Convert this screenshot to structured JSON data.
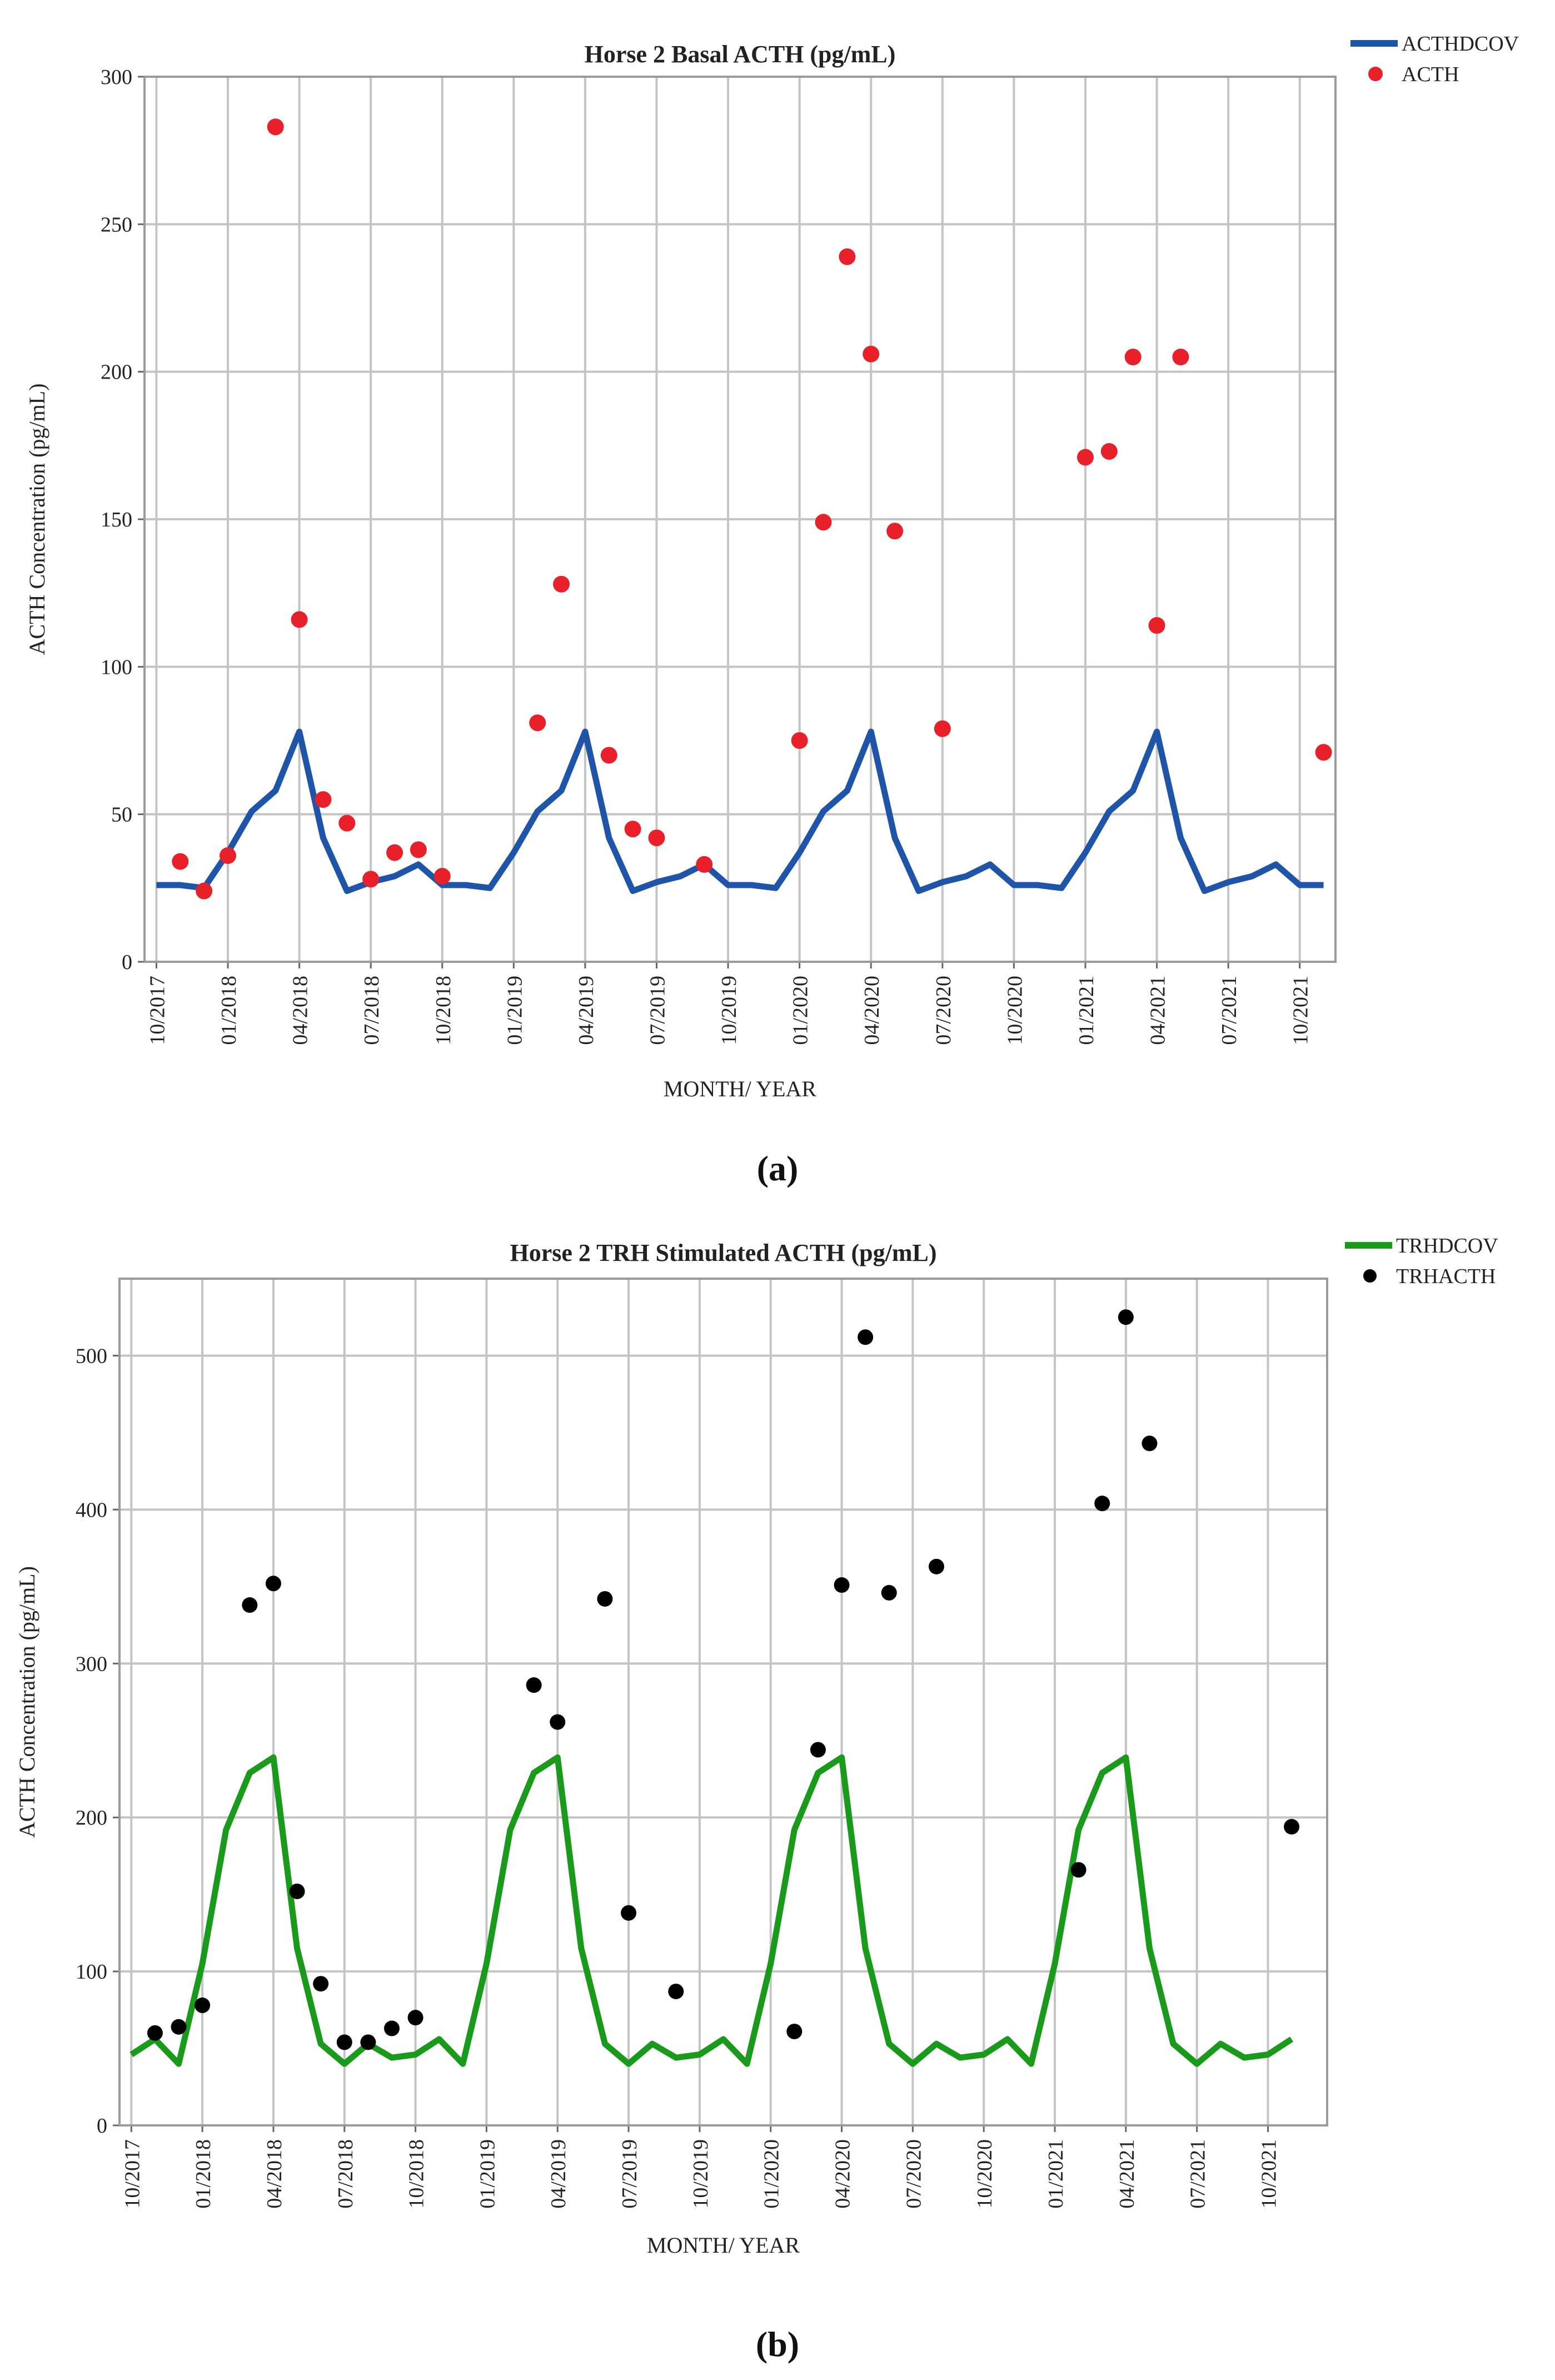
{
  "chart_data": [
    {
      "type": "line",
      "title": "Horse 2 Basal ACTH (pg/mL)",
      "xlabel": "MONTH/ YEAR",
      "ylabel": "ACTH Concentration (pg/mL)",
      "ylim": [
        0,
        300
      ],
      "yticks": [
        "0",
        "50",
        "100",
        "150",
        "200",
        "250",
        "300"
      ],
      "x_range_months": [
        0,
        49
      ],
      "tick_labels": [
        "10/2017",
        "01/2018",
        "04/2018",
        "07/2018",
        "10/2018",
        "01/2019",
        "04/2019",
        "07/2019",
        "10/2019",
        "01/2020",
        "04/2020",
        "07/2020",
        "10/2020",
        "01/2021",
        "04/2021",
        "07/2021",
        "10/2021"
      ],
      "x_note": "x values are month index, 0 = 10/2017",
      "grid": true,
      "legend_position": "top-right",
      "line_series": {
        "name": "ACTHDCOV",
        "color": "#1f55a8",
        "x": [
          0,
          1,
          2,
          3,
          4,
          5,
          6,
          7,
          8,
          9,
          10,
          11,
          12,
          13,
          14,
          15,
          16,
          17,
          18,
          19,
          20,
          21,
          22,
          23,
          24,
          25,
          26,
          27,
          28,
          29,
          30,
          31,
          32,
          33,
          34,
          35,
          36,
          37,
          38,
          39,
          40,
          41,
          42,
          43,
          44,
          45,
          46,
          47,
          48,
          49
        ],
        "y": [
          26,
          26,
          25,
          37,
          51,
          58,
          78,
          42,
          24,
          27,
          29,
          33,
          26,
          26,
          25,
          37,
          51,
          58,
          78,
          42,
          24,
          27,
          29,
          33,
          26,
          26,
          25,
          37,
          51,
          58,
          78,
          42,
          24,
          27,
          29,
          33,
          26,
          26,
          25,
          37,
          51,
          58,
          78,
          42,
          24,
          27,
          29,
          33,
          26,
          26
        ]
      },
      "point_series": {
        "name": "ACTH",
        "color": "#e8202a",
        "x": [
          1,
          2,
          3,
          5,
          6,
          7,
          8,
          9,
          10,
          11,
          12,
          16,
          17,
          19,
          20,
          21,
          23,
          27,
          28,
          29,
          30,
          31,
          33,
          39,
          40,
          41,
          42,
          43,
          49
        ],
        "y": [
          34,
          24,
          36,
          283,
          116,
          55,
          47,
          28,
          37,
          38,
          29,
          81,
          128,
          70,
          45,
          42,
          33,
          75,
          149,
          239,
          206,
          146,
          79,
          171,
          173,
          205,
          114,
          205,
          71
        ]
      }
    },
    {
      "type": "line",
      "title": "Horse 2 TRH Stimulated ACTH (pg/mL)",
      "xlabel": "MONTH/ YEAR",
      "ylabel": "ACTH Concentration (pg/mL)",
      "ylim": [
        0,
        550
      ],
      "yticks": [
        "0",
        "100",
        "200",
        "300",
        "400",
        "500"
      ],
      "x_range_months": [
        0,
        50
      ],
      "tick_labels": [
        "10/2017",
        "01/2018",
        "04/2018",
        "07/2018",
        "10/2018",
        "01/2019",
        "04/2019",
        "07/2019",
        "10/2019",
        "01/2020",
        "04/2020",
        "07/2020",
        "10/2020",
        "01/2021",
        "04/2021",
        "07/2021",
        "10/2021"
      ],
      "x_note": "x values are month index, 0 = 10/2017",
      "grid": true,
      "legend_position": "top-right",
      "line_series": {
        "name": "TRHDCOV",
        "color": "#1a9a1a",
        "x": [
          0,
          1,
          2,
          3,
          4,
          5,
          6,
          7,
          8,
          9,
          10,
          11,
          12,
          13,
          14,
          15,
          16,
          17,
          18,
          19,
          20,
          21,
          22,
          23,
          24,
          25,
          26,
          27,
          28,
          29,
          30,
          31,
          32,
          33,
          34,
          35,
          36,
          37,
          38,
          39,
          40,
          41,
          42,
          43,
          44,
          45,
          46,
          47,
          48,
          49
        ],
        "y": [
          46,
          56,
          40,
          105,
          192,
          229,
          239,
          115,
          53,
          40,
          53,
          44,
          46,
          56,
          40,
          105,
          192,
          229,
          239,
          115,
          53,
          40,
          53,
          44,
          46,
          56,
          40,
          105,
          192,
          229,
          239,
          115,
          53,
          40,
          53,
          44,
          46,
          56,
          40,
          105,
          192,
          229,
          239,
          115,
          53,
          40,
          53,
          44,
          46,
          56
        ]
      },
      "point_series": {
        "name": "TRHACTH",
        "color": "#000000",
        "x": [
          1,
          2,
          3,
          5,
          6,
          7,
          8,
          9,
          10,
          11,
          12,
          17,
          18,
          20,
          21,
          23,
          28,
          29,
          30,
          31,
          32,
          34,
          40,
          41,
          42,
          43,
          49
        ],
        "y": [
          60,
          64,
          78,
          338,
          352,
          152,
          92,
          54,
          54,
          63,
          70,
          286,
          262,
          342,
          138,
          87,
          61,
          244,
          351,
          512,
          346,
          363,
          166,
          404,
          525,
          443,
          194
        ]
      }
    }
  ],
  "panel_labels": [
    "(a)",
    "(b)"
  ]
}
